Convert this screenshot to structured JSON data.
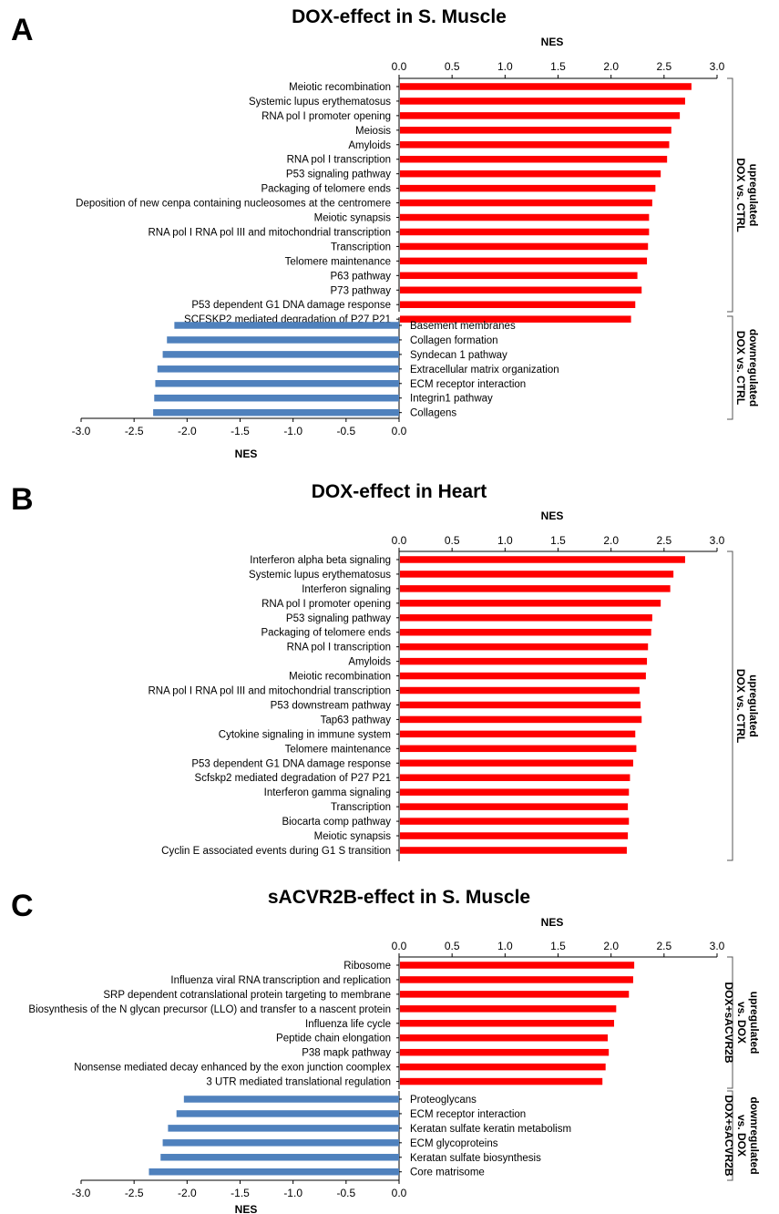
{
  "colors": {
    "up": "#ff0000",
    "down": "#4f81bd"
  },
  "chart_data": [
    {
      "type": "bar",
      "panel_letter": "A",
      "title": "DOX-effect in S. Muscle",
      "xlabel_top": "NES",
      "xlabel_bottom": "NES",
      "top_axis": {
        "range": [
          0,
          3.0
        ],
        "ticks": [
          "0.0",
          "0.5",
          "1.0",
          "1.5",
          "2.0",
          "2.5",
          "3.0"
        ]
      },
      "bottom_axis": {
        "range": [
          -3.0,
          0
        ],
        "ticks": [
          "-3.0",
          "-2.5",
          "-2.0",
          "-1.5",
          "-1.0",
          "-0.5",
          "0.0"
        ]
      },
      "groups": [
        {
          "direction": "up",
          "label_lines": [
            "DOX vs. CTRL",
            "upregulated"
          ],
          "categories": [
            "Meiotic recombination",
            "Systemic lupus erythematosus",
            "RNA pol I promoter opening",
            "Meiosis",
            "Amyloids",
            "RNA pol I transcription",
            "P53 signaling pathway",
            "Packaging of telomere ends",
            "Deposition of new cenpa containing nucleosomes at the centromere",
            "Meiotic synapsis",
            "RNA pol I RNA pol III and mitochondrial transcription",
            "Transcription",
            "Telomere maintenance",
            "P63 pathway",
            "P73 pathway",
            "P53 dependent G1 DNA damage response",
            "SCFSKP2 mediated degradation of P27 P21"
          ],
          "values": [
            2.75,
            2.69,
            2.64,
            2.56,
            2.54,
            2.52,
            2.46,
            2.41,
            2.38,
            2.35,
            2.35,
            2.34,
            2.33,
            2.24,
            2.28,
            2.22,
            2.18
          ]
        },
        {
          "direction": "down",
          "label_lines": [
            "DOX vs. CTRL",
            "downregulated"
          ],
          "categories": [
            "Basement membranes",
            "Collagen formation",
            "Syndecan 1 pathway",
            "Extracellular matrix organization",
            "ECM receptor interaction",
            "Integrin1 pathway",
            "Collagens"
          ],
          "values": [
            -2.12,
            -2.19,
            -2.23,
            -2.28,
            -2.3,
            -2.31,
            -2.32
          ]
        }
      ]
    },
    {
      "type": "bar",
      "panel_letter": "B",
      "title": "DOX-effect in Heart",
      "xlabel_top": "NES",
      "xlabel_bottom": "",
      "top_axis": {
        "range": [
          0,
          3.0
        ],
        "ticks": [
          "0.0",
          "0.5",
          "1.0",
          "1.5",
          "2.0",
          "2.5",
          "3.0"
        ]
      },
      "bottom_axis": null,
      "groups": [
        {
          "direction": "up",
          "label_lines": [
            "DOX vs. CTRL",
            "upregulated"
          ],
          "categories": [
            "Interferon alpha beta signaling",
            "Systemic lupus erythematosus",
            "Interferon signaling",
            "RNA pol I promoter opening",
            "P53 signaling pathway",
            "Packaging of telomere ends",
            "RNA pol I transcription",
            "Amyloids",
            "Meiotic recombination",
            "RNA pol I RNA pol III and mitochondrial transcription",
            "P53 downstream pathway",
            "Tap63 pathway",
            "Cytokine signaling in immune system",
            "Telomere maintenance",
            "P53 dependent G1 DNA damage response",
            "Scfskp2 mediated degradation of P27 P21",
            "Interferon gamma signaling",
            "Transcription",
            "Biocarta comp pathway",
            "Meiotic synapsis",
            "Cyclin E associated events during G1 S transition"
          ],
          "values": [
            2.69,
            2.58,
            2.55,
            2.46,
            2.38,
            2.37,
            2.34,
            2.33,
            2.32,
            2.26,
            2.27,
            2.28,
            2.22,
            2.23,
            2.2,
            2.17,
            2.16,
            2.15,
            2.16,
            2.15,
            2.14
          ]
        }
      ]
    },
    {
      "type": "bar",
      "panel_letter": "C",
      "title": "sACVR2B-effect in S. Muscle",
      "xlabel_top": "NES",
      "xlabel_bottom": "NES",
      "top_axis": {
        "range": [
          0,
          3.0
        ],
        "ticks": [
          "0.0",
          "0.5",
          "1.0",
          "1.5",
          "2.0",
          "2.5",
          "3.0"
        ]
      },
      "bottom_axis": {
        "range": [
          -3.0,
          0
        ],
        "ticks": [
          "-3.0",
          "-2.5",
          "-2.0",
          "-1.5",
          "-1.0",
          "-0.5",
          "0.0"
        ]
      },
      "groups": [
        {
          "direction": "up",
          "label_lines": [
            "DOX+sACVR2B",
            "vs. DOX",
            "upregulated"
          ],
          "categories": [
            "Ribosome",
            "Influenza viral RNA transcription and replication",
            "SRP dependent cotranslational protein targeting to membrane",
            "Biosynthesis of the N glycan precursor (LLO) and transfer to a nascent protein",
            "Influenza life cycle",
            "Peptide chain elongation",
            "P38 mapk pathway",
            "Nonsense mediated decay enhanced by the exon junction coomplex",
            "3 UTR mediated translational regulation"
          ],
          "values": [
            2.21,
            2.2,
            2.16,
            2.04,
            2.02,
            1.96,
            1.97,
            1.94,
            1.91
          ]
        },
        {
          "direction": "down",
          "label_lines": [
            "DOX+sACVR2B",
            "vs. DOX",
            "downregulated"
          ],
          "categories": [
            "Proteoglycans",
            "ECM receptor interaction",
            "Keratan sulfate keratin metabolism",
            "ECM glycoproteins",
            "Keratan sulfate biosynthesis",
            "Core matrisome"
          ],
          "values": [
            -2.03,
            -2.1,
            -2.18,
            -2.23,
            -2.25,
            -2.36
          ]
        }
      ]
    }
  ]
}
